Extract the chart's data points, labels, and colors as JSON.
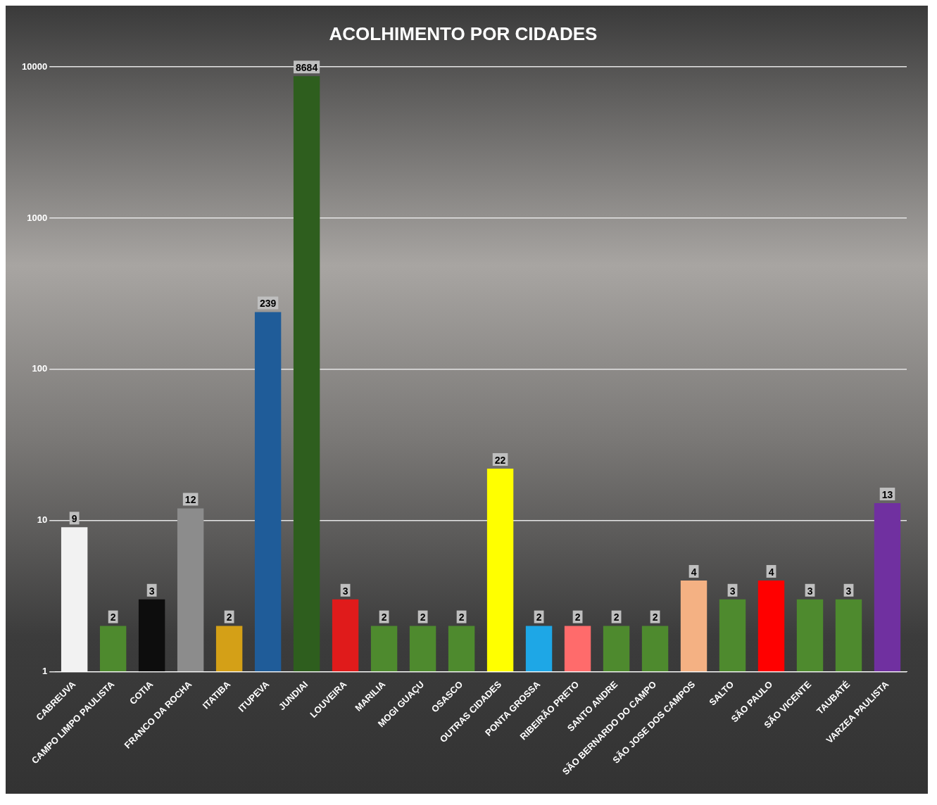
{
  "chart_data": {
    "type": "bar",
    "title": "ACOLHIMENTO POR CIDADES",
    "categories": [
      "CABREUVA",
      "CAMPO LIMPO PAULISTA",
      "COTIA",
      "FRANCO DA ROCHA",
      "ITATIBA",
      "ITUPEVA",
      "JUNDIAI",
      "LOUVEIRA",
      "MARILIA",
      "MOGI GUAÇU",
      "OSASCO",
      "OUTRAS CIDADES",
      "PONTA GROSSA",
      "RIBEIRÃO PRETO",
      "SANTO ANDRE",
      "SÃO BERNARDO DO CAMPO",
      "SÃO JOSE DOS CAMPOS",
      "SALTO",
      "SÃO PAULO",
      "SÃO VICENTE",
      "TAUBATÉ",
      "VARZEA PAULISTA"
    ],
    "values": [
      9,
      2,
      3,
      12,
      2,
      239,
      8684,
      3,
      2,
      2,
      2,
      22,
      2,
      2,
      2,
      2,
      4,
      3,
      4,
      3,
      3,
      13
    ],
    "colors": [
      "#f2f2f2",
      "#4e8a2e",
      "#0d0d0d",
      "#8c8c8c",
      "#d4a017",
      "#1f5c99",
      "#2e5e1e",
      "#e01b1b",
      "#4e8a2e",
      "#4e8a2e",
      "#4e8a2e",
      "#ffff00",
      "#1ea7e6",
      "#ff6b6b",
      "#4e8a2e",
      "#4e8a2e",
      "#f4b183",
      "#4e8a2e",
      "#ff0000",
      "#4e8a2e",
      "#4e8a2e",
      "#7030a0"
    ],
    "log": true,
    "ylim": [
      1,
      10000
    ],
    "yticks": [
      1,
      10,
      100,
      1000,
      10000
    ],
    "grid": "y",
    "data_labels": true,
    "legend": false
  }
}
